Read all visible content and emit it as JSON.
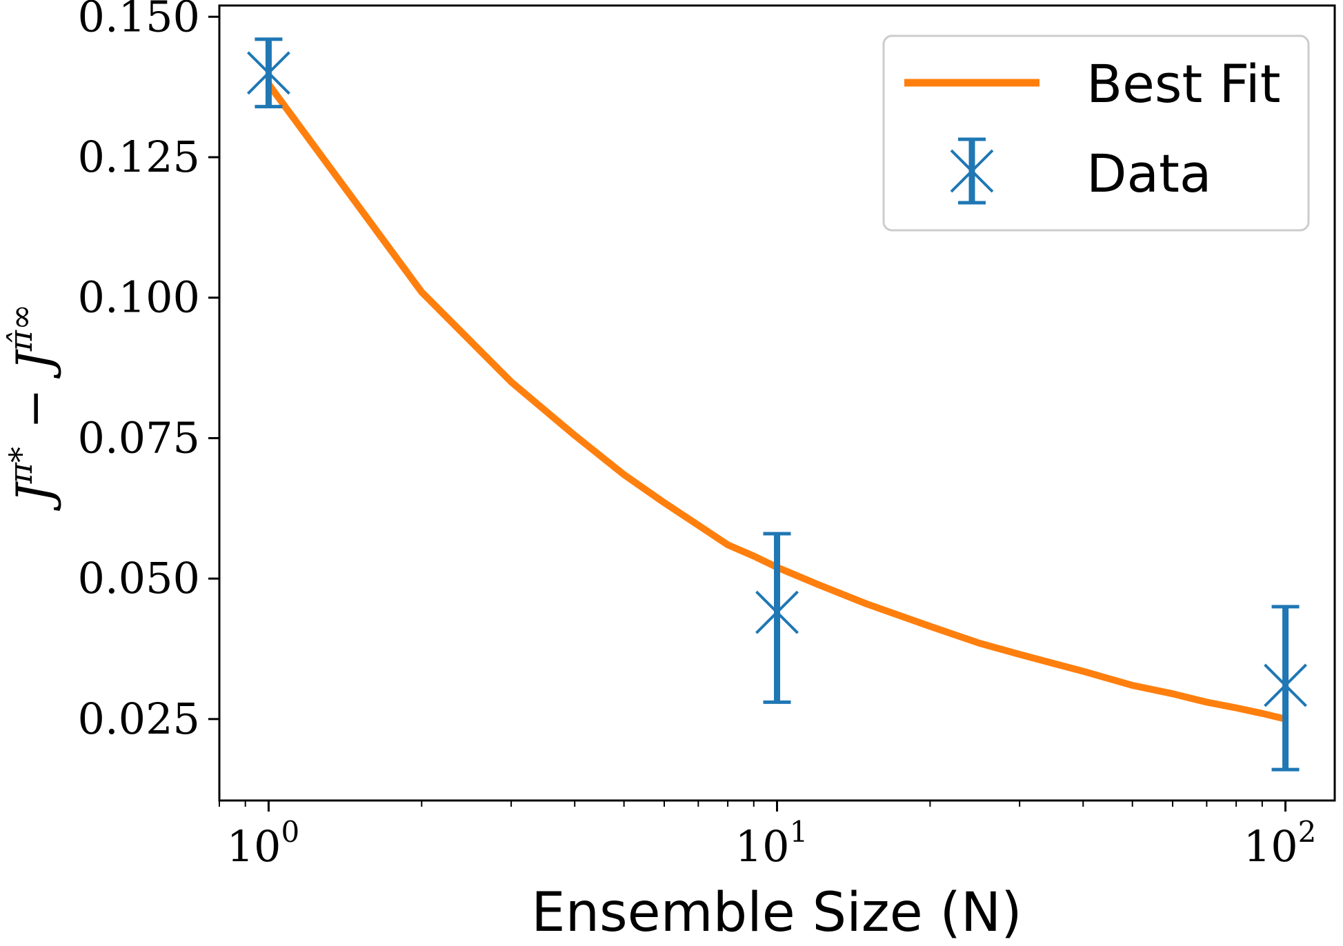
{
  "chart_data": {
    "type": "line",
    "xscale": "log",
    "xlim": [
      0.8,
      125
    ],
    "ylim": [
      0.0105,
      0.152
    ],
    "xlabel": "Ensemble Size (N)",
    "ylabel": "J^{π*} − J^{π̂∞}",
    "ylabel_parts": {
      "base1": "J",
      "sup1": "π*",
      "minus": "−",
      "base2": "J",
      "sup2": "π̂∞"
    },
    "x_ticks": [
      {
        "value": 1,
        "base": "10",
        "exp": "0"
      },
      {
        "value": 10,
        "base": "10",
        "exp": "1"
      },
      {
        "value": 100,
        "base": "10",
        "exp": "2"
      }
    ],
    "y_ticks": [
      {
        "value": 0.025,
        "label": "0.025"
      },
      {
        "value": 0.05,
        "label": "0.050"
      },
      {
        "value": 0.075,
        "label": "0.075"
      },
      {
        "value": 0.1,
        "label": "0.100"
      },
      {
        "value": 0.125,
        "label": "0.125"
      },
      {
        "value": 0.15,
        "label": "0.150"
      }
    ],
    "grid": false,
    "legend_position": "top-right",
    "series": [
      {
        "name": "Best Fit",
        "kind": "line",
        "color": "#ff7f0e",
        "x": [
          1,
          2,
          3,
          4,
          5,
          6,
          7,
          8,
          9,
          10,
          12,
          15,
          20,
          25,
          30,
          40,
          50,
          60,
          70,
          80,
          90,
          100
        ],
        "y": [
          0.138,
          0.101,
          0.085,
          0.0755,
          0.0685,
          0.0635,
          0.0595,
          0.056,
          0.054,
          0.052,
          0.049,
          0.0455,
          0.0415,
          0.0385,
          0.0365,
          0.0335,
          0.031,
          0.0295,
          0.028,
          0.027,
          0.026,
          0.025
        ]
      },
      {
        "name": "Data",
        "kind": "errorbar",
        "color": "#1f77b4",
        "x": [
          1,
          10,
          100
        ],
        "y": [
          0.14,
          0.044,
          0.031
        ],
        "yerr_low": [
          0.134,
          0.028,
          0.016
        ],
        "yerr_high": [
          0.146,
          0.058,
          0.045
        ]
      }
    ]
  }
}
